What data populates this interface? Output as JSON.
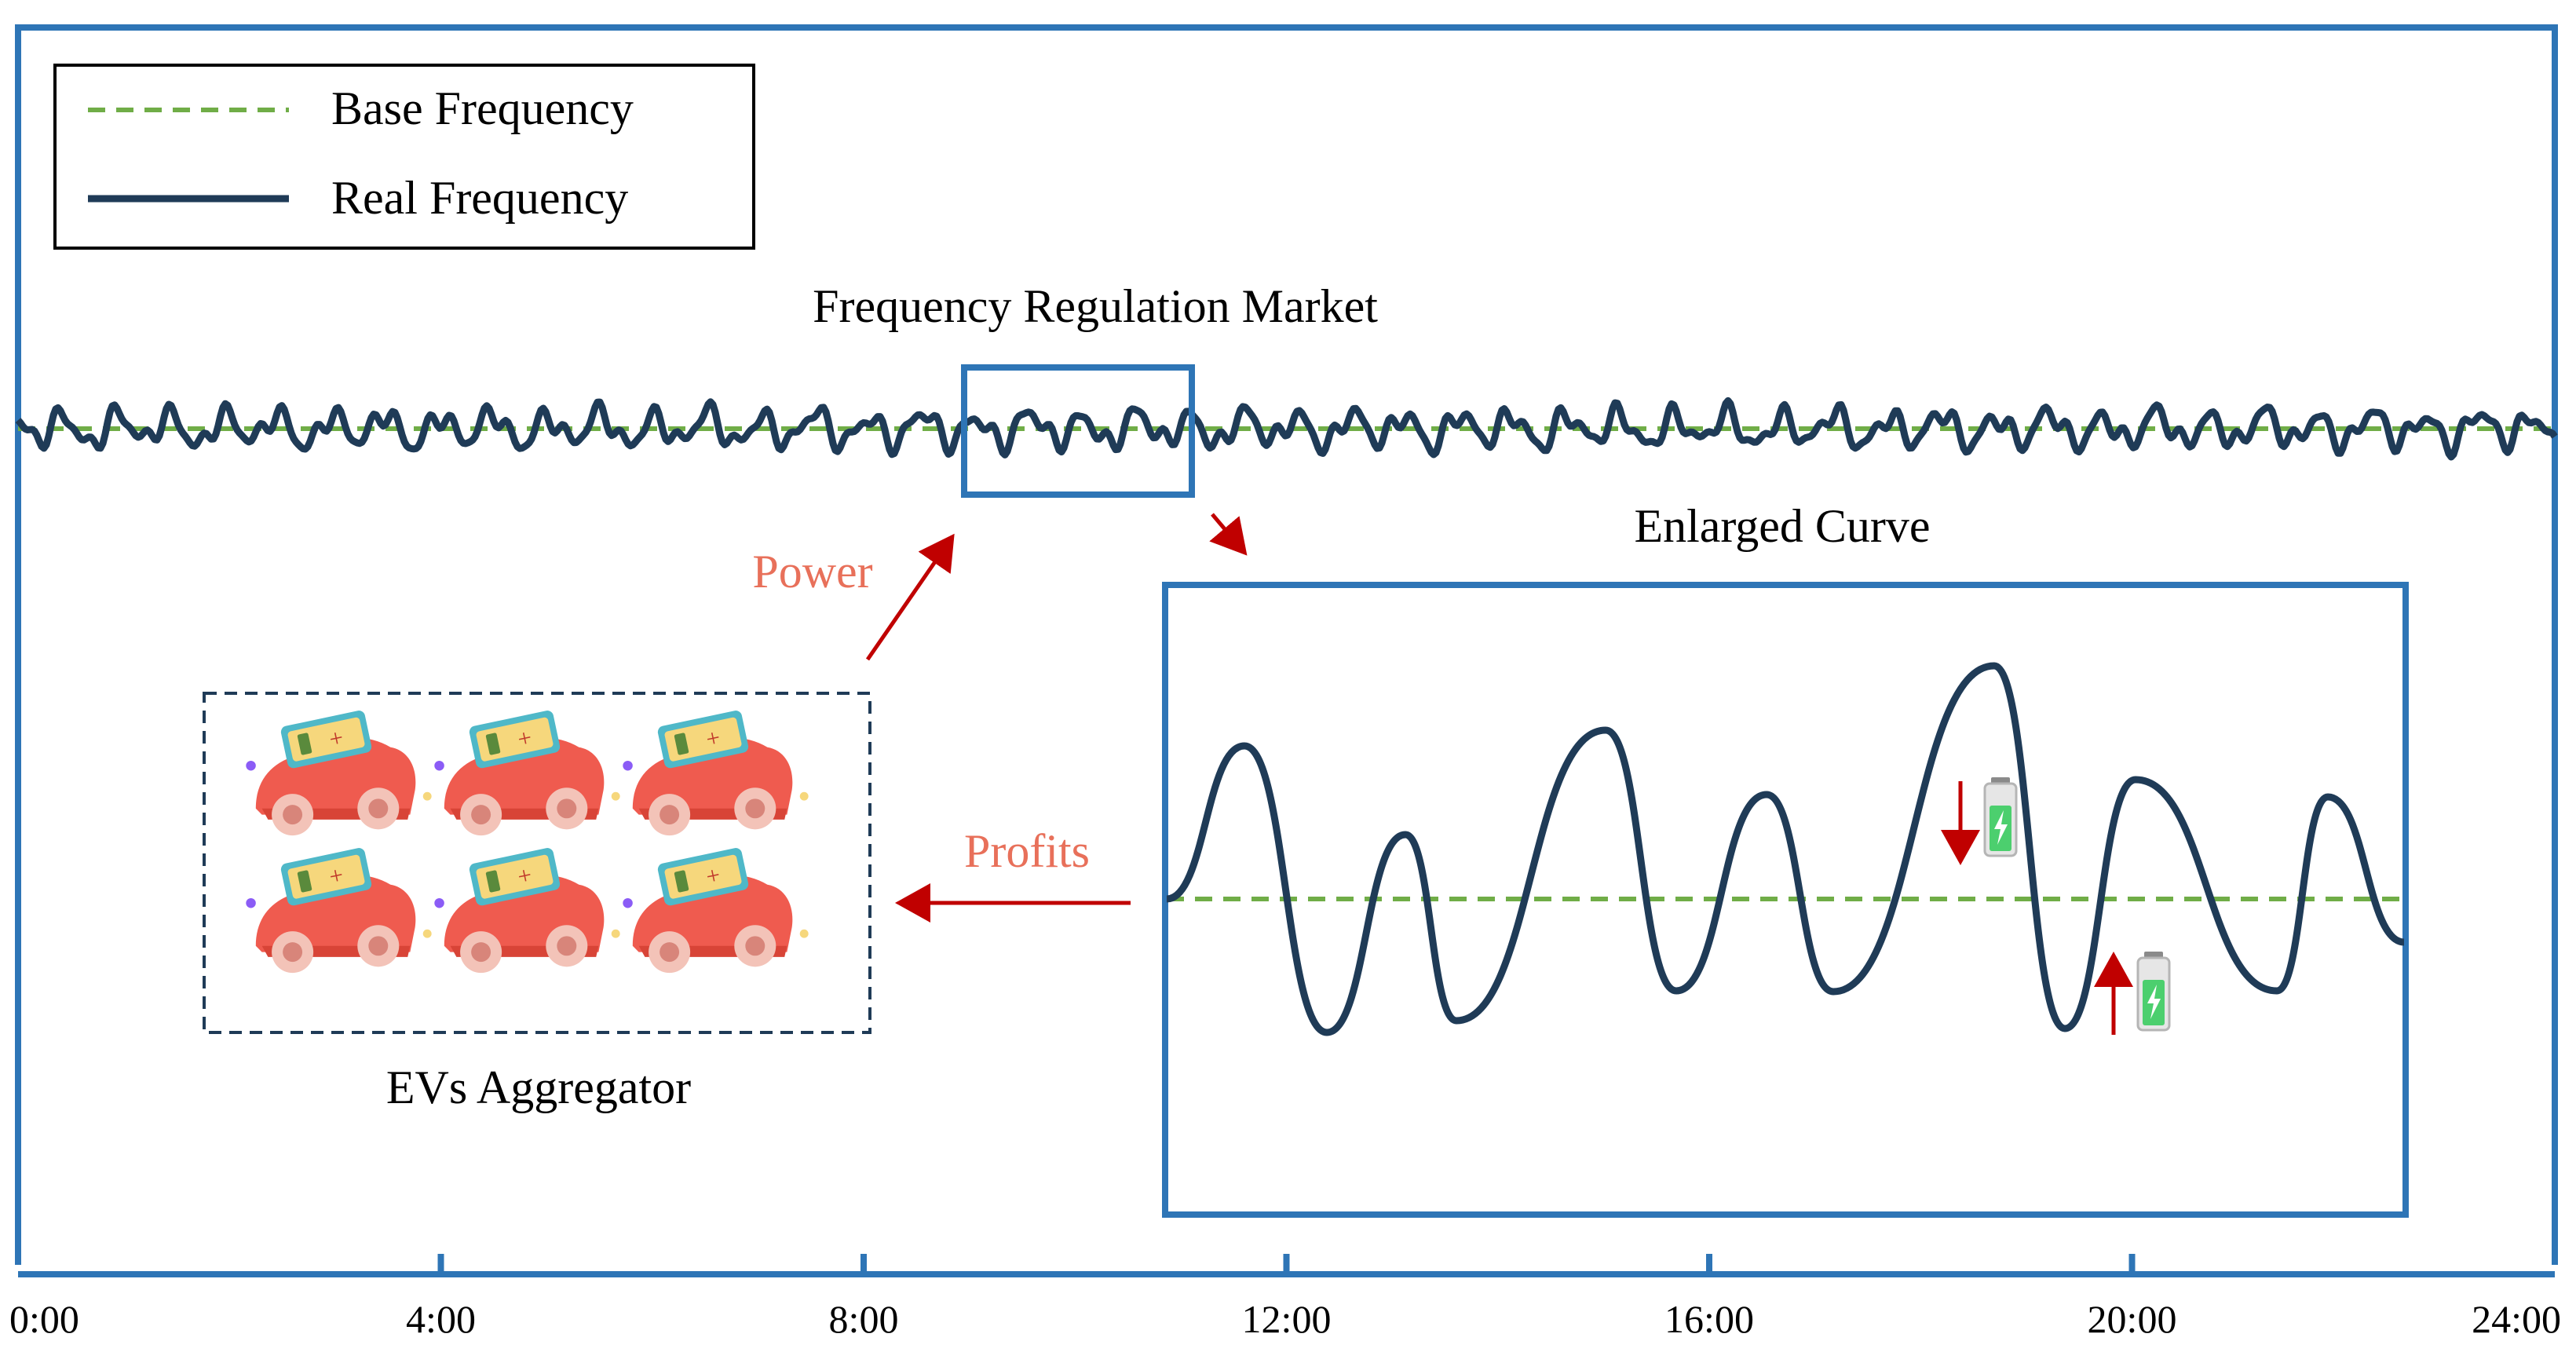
{
  "title": "Frequency Regulation Market",
  "legend": {
    "base_label": "Base Frequency",
    "real_label": "Real Frequency"
  },
  "labels": {
    "enlarged": "Enlarged Curve",
    "power": "Power",
    "profits": "Profits",
    "aggregator": "EVs Aggregator"
  },
  "time_axis": [
    "0:00",
    "4:00",
    "8:00",
    "12:00",
    "16:00",
    "20:00",
    "24:00"
  ],
  "ev_count": 6,
  "colors": {
    "frame": "#2e75b6",
    "real_curve": "#1f3b57",
    "base_line": "#70ad47",
    "arrow": "#c00000",
    "label_red": "#e8705a",
    "car_body": "#ef5b4f",
    "battery": "#f6d77c"
  }
}
